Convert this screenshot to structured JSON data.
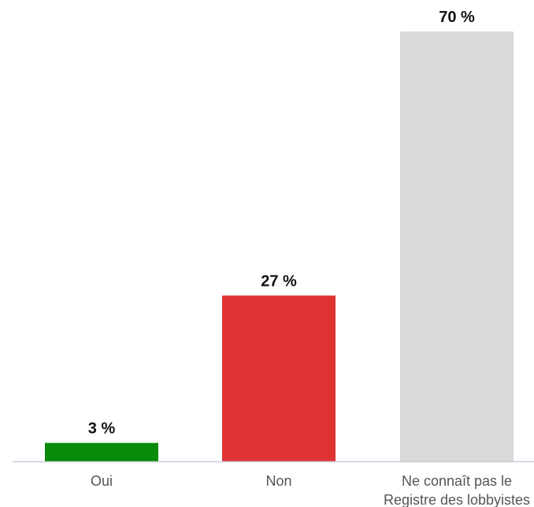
{
  "chart_data": {
    "type": "bar",
    "categories": [
      [
        "Oui"
      ],
      [
        "Non"
      ],
      [
        "Ne connaît pas le",
        "Registre des lobbyistes"
      ]
    ],
    "values": [
      3,
      27,
      70
    ],
    "value_labels": [
      "3 %",
      "27 %",
      "70 %"
    ],
    "colors": [
      "#0a8a0a",
      "#e03434",
      "#d9d9d9"
    ],
    "axis_color": "#c9c9d9",
    "ylim": [
      0,
      70
    ],
    "grid": false,
    "title": "",
    "xlabel": "",
    "ylabel": ""
  }
}
